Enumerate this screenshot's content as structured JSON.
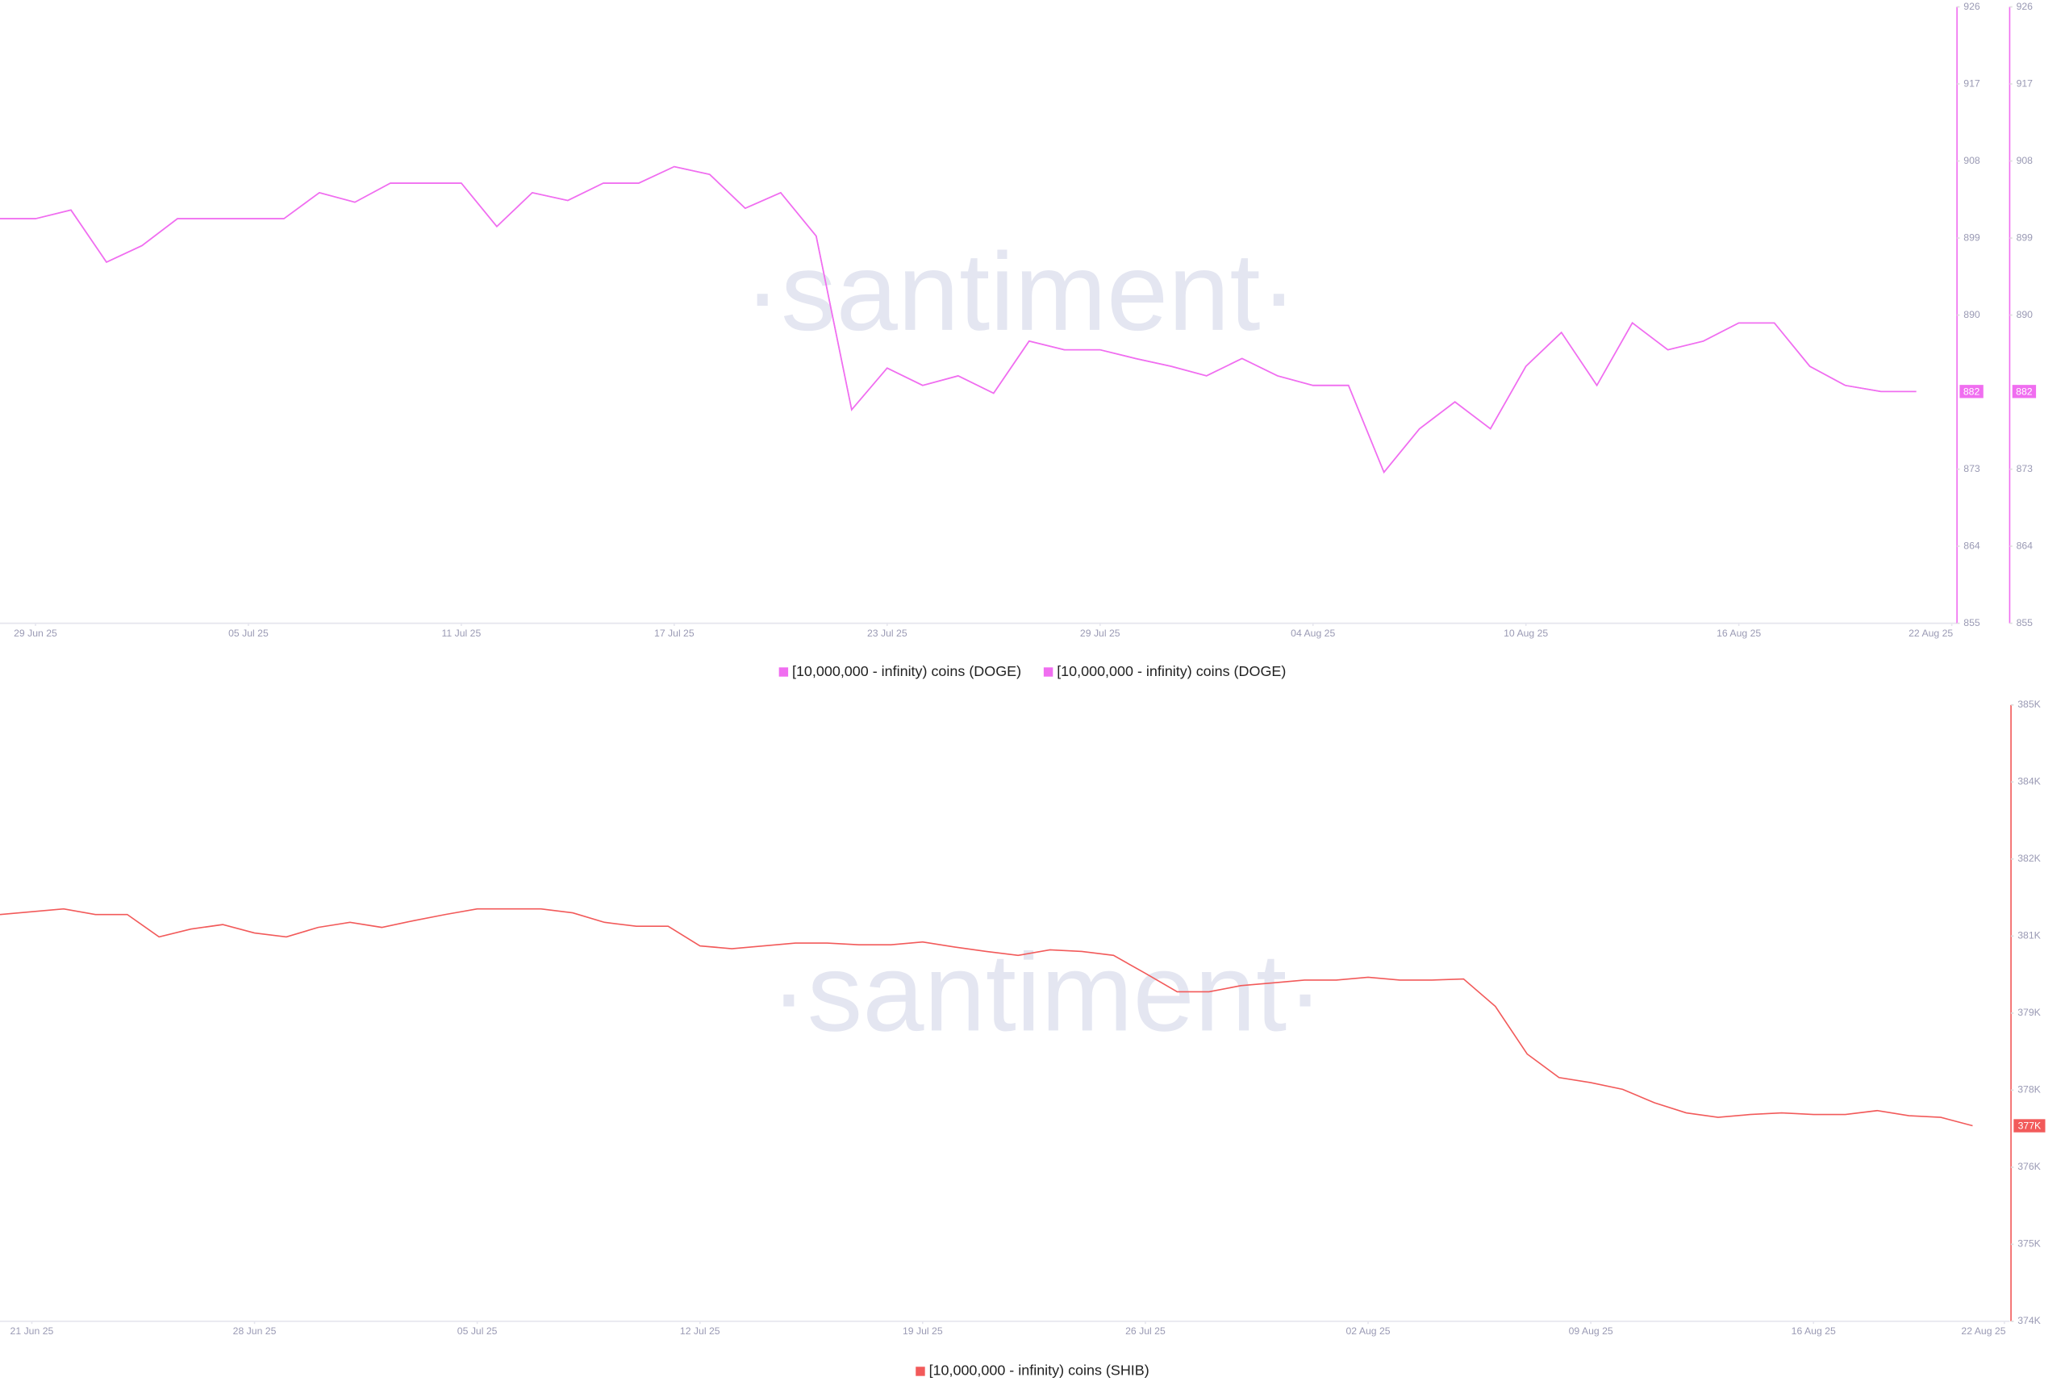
{
  "chart_data": [
    {
      "type": "line",
      "watermark": "·santiment·",
      "x": [
        "28 Jun 25",
        "29 Jun 25",
        "30 Jun 25",
        "01 Jul 25",
        "02 Jul 25",
        "03 Jul 25",
        "04 Jul 25",
        "05 Jul 25",
        "06 Jul 25",
        "07 Jul 25",
        "08 Jul 25",
        "09 Jul 25",
        "10 Jul 25",
        "11 Jul 25",
        "12 Jul 25",
        "13 Jul 25",
        "14 Jul 25",
        "15 Jul 25",
        "16 Jul 25",
        "17 Jul 25",
        "18 Jul 25",
        "19 Jul 25",
        "20 Jul 25",
        "21 Jul 25",
        "22 Jul 25",
        "23 Jul 25",
        "24 Jul 25",
        "25 Jul 25",
        "26 Jul 25",
        "27 Jul 25",
        "28 Jul 25",
        "29 Jul 25",
        "30 Jul 25",
        "31 Jul 25",
        "01 Aug 25",
        "02 Aug 25",
        "03 Aug 25",
        "04 Aug 25",
        "05 Aug 25",
        "06 Aug 25",
        "07 Aug 25",
        "08 Aug 25",
        "09 Aug 25",
        "10 Aug 25",
        "11 Aug 25",
        "12 Aug 25",
        "13 Aug 25",
        "14 Aug 25",
        "15 Aug 25",
        "16 Aug 25",
        "17 Aug 25",
        "18 Aug 25",
        "19 Aug 25",
        "20 Aug 25",
        "21 Aug 25"
      ],
      "xlim": [
        "28 Jun 25",
        "22 Aug 25"
      ],
      "xticks": [
        "29 Jun 25",
        "05 Jul 25",
        "11 Jul 25",
        "17 Jul 25",
        "23 Jul 25",
        "29 Jul 25",
        "04 Aug 25",
        "10 Aug 25",
        "16 Aug 25",
        "22 Aug 25"
      ],
      "ylim": [
        855,
        926
      ],
      "yticks": [
        855,
        {
          "value": 863.875,
          "label": "864"
        },
        {
          "value": 872.75,
          "label": "873"
        },
        {
          "value": 890.5,
          "label": "890"
        },
        {
          "value": 899.375,
          "label": "899"
        },
        {
          "value": 908.25,
          "label": "908"
        },
        {
          "value": 917.125,
          "label": "917"
        },
        926
      ],
      "y2lim": [
        855,
        926
      ],
      "y2ticks": [
        855,
        {
          "value": 863.875,
          "label": "864"
        },
        {
          "value": 872.75,
          "label": "873"
        },
        {
          "value": 890.5,
          "label": "890"
        },
        {
          "value": 899.375,
          "label": "899"
        },
        {
          "value": 908.25,
          "label": "908"
        },
        {
          "value": 917.125,
          "label": "917"
        },
        926
      ],
      "series": [
        {
          "name": "[10,000,000 - infinity) coins (DOGE)",
          "color": "#f06ef0",
          "axis": "y",
          "last_value_label": "882",
          "values": [
            901.6,
            901.6,
            902.6,
            896.6,
            898.5,
            901.6,
            901.6,
            901.6,
            901.6,
            904.6,
            903.5,
            905.7,
            905.7,
            905.7,
            900.7,
            904.6,
            903.7,
            905.7,
            905.7,
            907.6,
            906.7,
            902.8,
            904.6,
            899.6,
            879.6,
            884.4,
            882.4,
            883.5,
            881.5,
            887.5,
            886.5,
            886.5,
            885.5,
            884.6,
            883.5,
            885.5,
            883.5,
            882.4,
            882.4,
            872.4,
            877.4,
            880.5,
            877.4,
            884.6,
            888.5,
            882.4,
            889.6,
            886.5,
            887.5,
            889.6,
            889.6,
            884.6,
            882.4,
            881.7,
            881.7
          ]
        },
        {
          "name": "[10,000,000 - infinity) coins (DOGE)",
          "color": "#f06ef0",
          "axis": "y2",
          "last_value_label": "882",
          "values": [
            901.6,
            901.6,
            902.6,
            896.6,
            898.5,
            901.6,
            901.6,
            901.6,
            901.6,
            904.6,
            903.5,
            905.7,
            905.7,
            905.7,
            900.7,
            904.6,
            903.7,
            905.7,
            905.7,
            907.6,
            906.7,
            902.8,
            904.6,
            899.6,
            879.6,
            884.4,
            882.4,
            883.5,
            881.5,
            887.5,
            886.5,
            886.5,
            885.5,
            884.6,
            883.5,
            885.5,
            883.5,
            882.4,
            882.4,
            872.4,
            877.4,
            880.5,
            877.4,
            884.6,
            888.5,
            882.4,
            889.6,
            886.5,
            887.5,
            889.6,
            889.6,
            884.6,
            882.4,
            881.7,
            881.7
          ]
        }
      ]
    },
    {
      "type": "line",
      "watermark": "·santiment·",
      "x": [
        "20 Jun 25",
        "21 Jun 25",
        "22 Jun 25",
        "23 Jun 25",
        "24 Jun 25",
        "25 Jun 25",
        "26 Jun 25",
        "27 Jun 25",
        "28 Jun 25",
        "29 Jun 25",
        "30 Jun 25",
        "01 Jul 25",
        "02 Jul 25",
        "03 Jul 25",
        "04 Jul 25",
        "05 Jul 25",
        "06 Jul 25",
        "07 Jul 25",
        "08 Jul 25",
        "09 Jul 25",
        "10 Jul 25",
        "11 Jul 25",
        "12 Jul 25",
        "13 Jul 25",
        "14 Jul 25",
        "15 Jul 25",
        "16 Jul 25",
        "17 Jul 25",
        "18 Jul 25",
        "19 Jul 25",
        "20 Jul 25",
        "21 Jul 25",
        "22 Jul 25",
        "23 Jul 25",
        "24 Jul 25",
        "25 Jul 25",
        "26 Jul 25",
        "27 Jul 25",
        "28 Jul 25",
        "29 Jul 25",
        "30 Jul 25",
        "31 Jul 25",
        "01 Aug 25",
        "02 Aug 25",
        "03 Aug 25",
        "04 Aug 25",
        "05 Aug 25",
        "06 Aug 25",
        "07 Aug 25",
        "08 Aug 25",
        "09 Aug 25",
        "10 Aug 25",
        "11 Aug 25",
        "12 Aug 25",
        "13 Aug 25",
        "14 Aug 25",
        "15 Aug 25",
        "16 Aug 25",
        "17 Aug 25",
        "18 Aug 25",
        "19 Aug 25",
        "20 Aug 25",
        "21 Aug 25"
      ],
      "xlim": [
        "20 Jun 25",
        "22 Aug 25"
      ],
      "xticks": [
        "21 Jun 25",
        "28 Jun 25",
        "05 Jul 25",
        "12 Jul 25",
        "19 Jul 25",
        "26 Jul 25",
        "02 Aug 25",
        "09 Aug 25",
        "16 Aug 25",
        "22 Aug 25"
      ],
      "ylim": [
        374000,
        385000
      ],
      "yticks": [
        {
          "value": 374000,
          "label": "374K"
        },
        {
          "value": 375375,
          "label": "375K"
        },
        {
          "value": 376750,
          "label": "376K"
        },
        {
          "value": 378125,
          "label": "378K"
        },
        {
          "value": 379500,
          "label": "379K"
        },
        {
          "value": 380875,
          "label": "381K"
        },
        {
          "value": 382250,
          "label": "382K"
        },
        {
          "value": 383625,
          "label": "384K"
        },
        {
          "value": 385000,
          "label": "385K"
        }
      ],
      "series": [
        {
          "name": "[10,000,000 - infinity) coins (SHIB)",
          "color": "#f25a5a",
          "axis": "y",
          "last_value_label": "377K",
          "values": [
            381260,
            381310,
            381360,
            381260,
            381260,
            380860,
            381000,
            381080,
            380930,
            380860,
            381030,
            381120,
            381030,
            381150,
            381260,
            381360,
            381360,
            381360,
            381290,
            381120,
            381050,
            381050,
            380700,
            380650,
            380700,
            380750,
            380750,
            380720,
            380720,
            380770,
            380680,
            380600,
            380530,
            380630,
            380600,
            380530,
            380210,
            379880,
            379880,
            379990,
            380040,
            380090,
            380090,
            380140,
            380090,
            380090,
            380110,
            379620,
            378770,
            378350,
            378260,
            378140,
            377900,
            377720,
            377640,
            377690,
            377720,
            377690,
            377690,
            377760,
            377670,
            377640,
            377490
          ]
        }
      ]
    }
  ]
}
